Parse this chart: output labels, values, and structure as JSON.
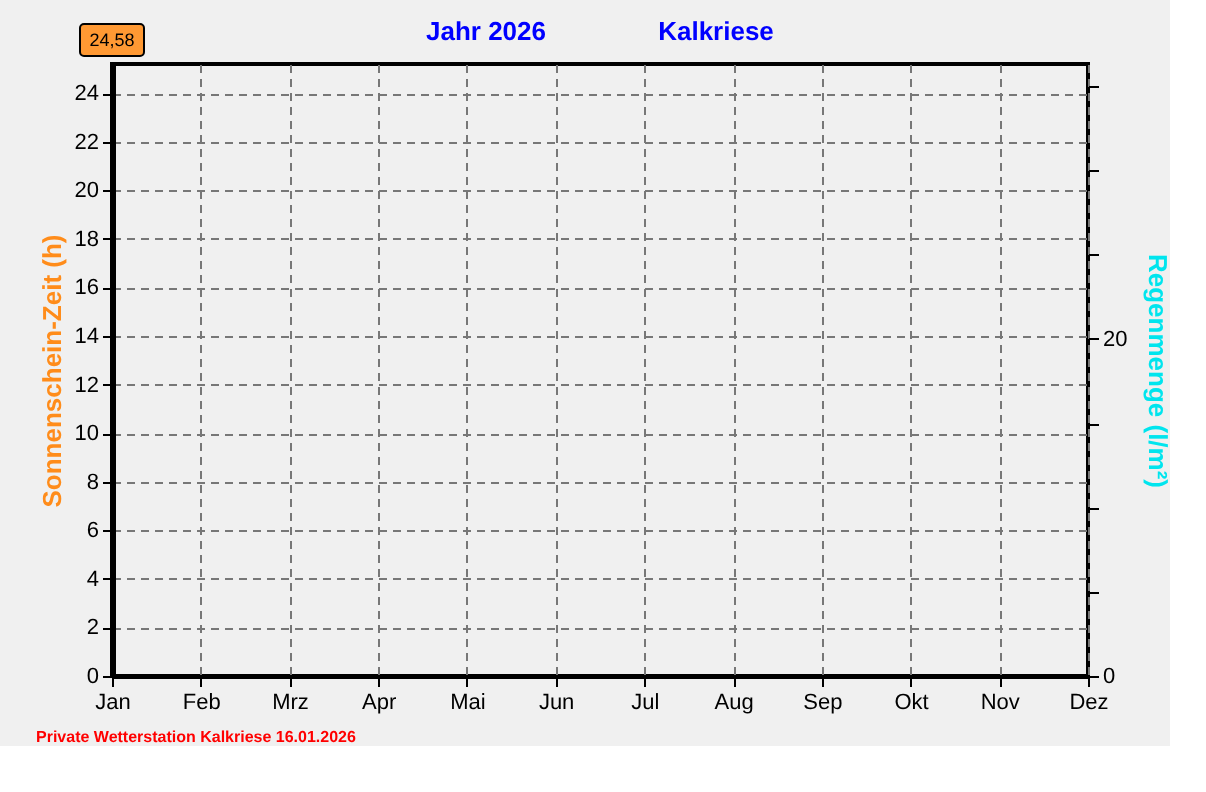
{
  "chart_data": {
    "type": "bar",
    "title": "Jahr  2026",
    "subtitle": "Kalkriese",
    "ylabel": "Sonnenschein-Zeit  (h)",
    "y2label": "Regenmenge  (l/m²)",
    "categories": [
      "Jan",
      "Feb",
      "Mrz",
      "Apr",
      "Mai",
      "Jun",
      "Jul",
      "Aug",
      "Sep",
      "Okt",
      "Nov",
      "Dez"
    ],
    "series": [
      {
        "color": "#ff8c1a",
        "values": [
          null,
          null,
          null,
          null,
          null,
          null,
          null,
          null,
          null,
          null,
          null,
          null
        ]
      },
      {
        "axis": "y2",
        "color": "#00e5ee",
        "values": [
          null,
          null,
          null,
          null,
          null,
          null,
          null,
          null,
          null,
          null,
          null,
          null
        ]
      }
    ],
    "ylim": [
      0,
      25.2
    ],
    "yticks": [
      0,
      2,
      4,
      6,
      8,
      10,
      12,
      14,
      16,
      18,
      20,
      22,
      24
    ],
    "y2lim": [
      0,
      36.3
    ],
    "y2ticks": [
      0,
      {
        "value": 5,
        "label": null
      },
      {
        "value": 10,
        "label": null
      },
      {
        "value": 15,
        "label": null
      },
      20,
      {
        "value": 25,
        "label": null
      },
      {
        "value": 30,
        "label": null
      },
      {
        "value": 35,
        "label": null
      }
    ],
    "grid": true,
    "annotations": [
      "24,58",
      "Private Wetterstation Kalkriese  16.01.2026"
    ]
  }
}
